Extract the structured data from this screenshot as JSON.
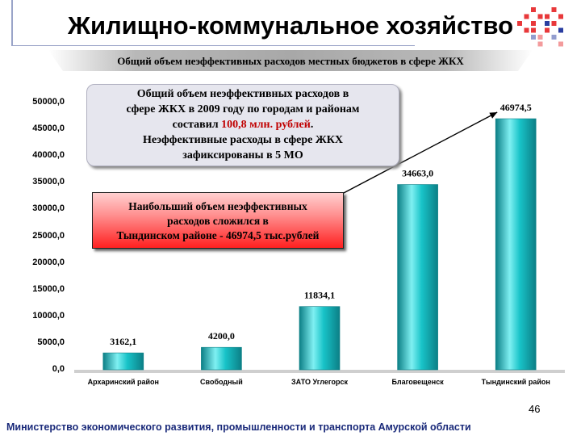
{
  "header": {
    "title": "Жилищно-коммунальное хозяйство",
    "subtitle": "Общий объем неэффективных расходов местных бюджетов в сфере ЖКХ"
  },
  "colors": {
    "bar": "#18c3c8",
    "bar_dark": "#0c7f86",
    "bar_light": "#7ff0f2",
    "footer_text": "#1a2a7a",
    "highlight": "#c00000",
    "dots_red": "#e8383a",
    "dots_blue": "#2a3ea0"
  },
  "chart_data": {
    "type": "bar",
    "categories": [
      "Архаринский район",
      "Свободный",
      "ЗАТО Углегорск",
      "Благовещенск",
      "Тындинский район"
    ],
    "values": [
      3162.1,
      4200.0,
      11834.1,
      34663.0,
      46974.5
    ],
    "value_labels": [
      "3162,1",
      "4200,0",
      "11834,1",
      "34663,0",
      "46974,5"
    ],
    "yticks": [
      "0,0",
      "5000,0",
      "10000,0",
      "15000,0",
      "20000,0",
      "25000,0",
      "30000,0",
      "35000,0",
      "40000,0",
      "45000,0",
      "50000,0"
    ],
    "ylim": [
      0,
      50000
    ],
    "title": "",
    "xlabel": "",
    "ylabel": "",
    "grid": false,
    "legend": "none"
  },
  "callouts": {
    "note1": {
      "line1": "Общий объем неэффективных расходов в",
      "line2": "сфере ЖКХ в 2009 году по городам и районам",
      "line3a": "составил ",
      "line3b": "100,8 млн. рублей",
      "line3c": ".",
      "line4": "Неэффективные расходы в сфере ЖКХ",
      "line5": "зафиксированы в 5 МО"
    },
    "note2": {
      "line1": "Наибольший объем неэффективных",
      "line2": "расходов сложился в",
      "line3": "Тындинском районе  - 46974,5 тыс.рублей"
    }
  },
  "footer": {
    "page_number": "46",
    "ministry": "Министерство экономического развития, промышленности и транспорта Амурской области"
  }
}
